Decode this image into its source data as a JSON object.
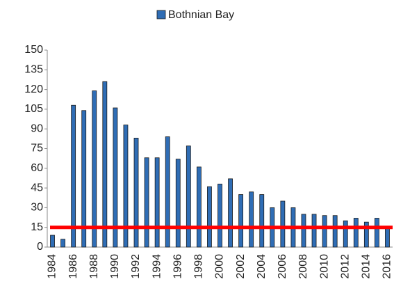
{
  "chart_data": {
    "type": "bar",
    "categories": [
      "1984",
      null,
      "1986",
      null,
      "1988",
      null,
      "1990",
      null,
      "1992",
      null,
      "1994",
      null,
      "1996",
      null,
      "1998",
      null,
      "2000",
      null,
      "2002",
      null,
      "2004",
      null,
      "2006",
      null,
      "2008",
      null,
      "2010",
      null,
      "2012",
      null,
      "2014",
      null,
      "2016"
    ],
    "series": [
      {
        "name": "Bothnian Bay",
        "color": "#2f6db5",
        "values": [
          9,
          6,
          108,
          104,
          119,
          126,
          106,
          93,
          83,
          68,
          68,
          84,
          67,
          77,
          61,
          46,
          48,
          52,
          40,
          42,
          40,
          30,
          35,
          30,
          25,
          25,
          24,
          24,
          20,
          22,
          19,
          22,
          15
        ]
      }
    ],
    "reference_line": {
      "value": 15,
      "color": "#ff0000"
    },
    "ylim": [
      0,
      150
    ],
    "yticks": [
      0,
      15,
      30,
      45,
      60,
      75,
      90,
      105,
      120,
      135,
      150
    ],
    "grid": false,
    "legend": "top"
  }
}
